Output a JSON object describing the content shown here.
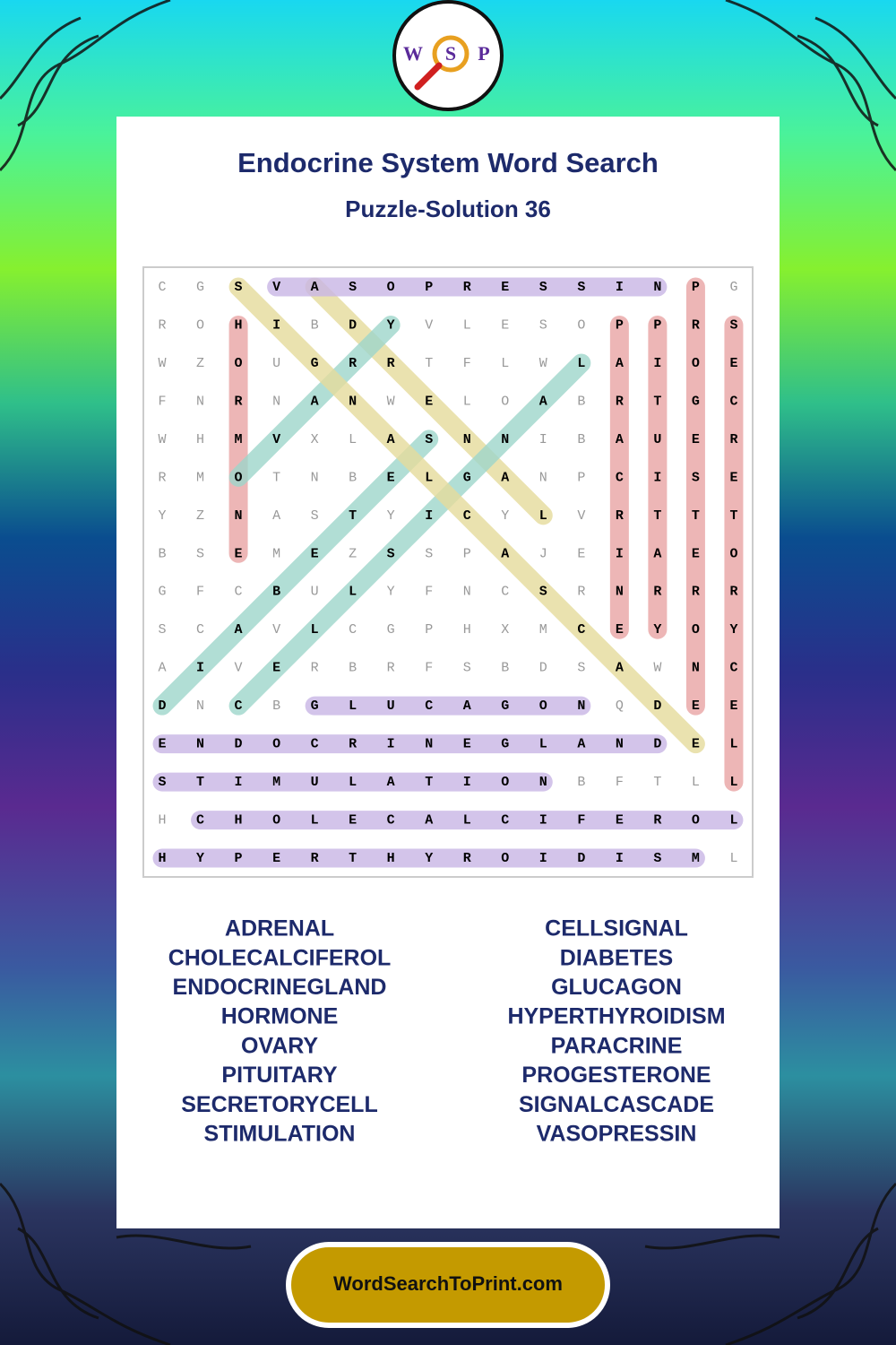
{
  "header": {
    "title": "Endocrine System Word Search",
    "subtitle": "Puzzle-Solution 36",
    "logo": [
      "W",
      "S",
      "P"
    ]
  },
  "grid": {
    "rows": [
      "CGSVASOPRESSINPG",
      "ROHIBDYVLESOPPRS",
      "WZOUGRRTFLWLAIOE",
      "FNRNANWELOABRTGC",
      "WHMVXLASNNIBAUER",
      "RMOTNBELGANPCISE",
      "YZNASTYICYLVRTTT",
      "BSEMEZSSPAJEIAEO",
      "GFCBULYFNCSRNRRR",
      "SCAVLCGPHXMCEYOY",
      "AIVERBRFSBDSAWNC",
      "DNCBGLUCAGONQDEE",
      "ENDOCRINEGLANDEL",
      "STIMULATIONBFTLL",
      "HCHOLECALCIFEROL",
      "HYPERTHYROIDISML"
    ]
  },
  "words": [
    "ADRENAL",
    "CELLSIGNAL",
    "CHOLECALCIFEROL",
    "DIABETES",
    "ENDOCRINEGLAND",
    "GLUCAGON",
    "HORMONE",
    "HYPERTHYROIDISM",
    "OVARY",
    "PARACRINE",
    "PITUITARY",
    "PROGESTERONE",
    "SECRETORYCELL",
    "SIGNALCASCADE",
    "STIMULATION",
    "VASOPRESSIN"
  ],
  "footer": {
    "site": "WordSearchToPrint.com"
  }
}
